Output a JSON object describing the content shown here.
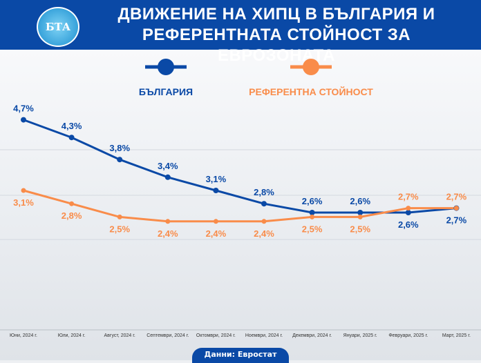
{
  "header": {
    "title_line1": "ДВИЖЕНИЕ НА ХИПЦ В БЪЛГАРИЯ И",
    "title_line2": "РЕФЕРЕНТНАТА СТОЙНОСТ ЗА ЕВРОЗОНАТА",
    "logo_text": "БТА"
  },
  "source": "Данни: Евростат",
  "chart_data": {
    "type": "line",
    "categories": [
      "Юни, 2024 г.",
      "Юли, 2024 г.",
      "Август, 2024 г.",
      "Септември, 2024 г.",
      "Октомври, 2024 г.",
      "Ноември, 2024 г.",
      "Декември, 2024 г.",
      "Януари, 2025 г.",
      "Февруари, 2025 г.",
      "Март, 2025 г."
    ],
    "series": [
      {
        "name": "БЪЛГАРИЯ",
        "color": "#0a49a6",
        "values": [
          4.7,
          4.3,
          3.8,
          3.4,
          3.1,
          2.8,
          2.6,
          2.6,
          2.6,
          2.7
        ],
        "labels": [
          "4,7%",
          "4,3%",
          "3,8%",
          "3,4%",
          "3,1%",
          "2,8%",
          "2,6%",
          "2,6%",
          "2,6%",
          "2,7%"
        ]
      },
      {
        "name": "РЕФЕРЕНТНА СТОЙНОСТ",
        "color": "#f98c4a",
        "values": [
          3.1,
          2.8,
          2.5,
          2.4,
          2.4,
          2.4,
          2.5,
          2.5,
          2.7,
          2.7
        ],
        "labels": [
          "3,1%",
          "2,8%",
          "2,5%",
          "2,4%",
          "2,4%",
          "2,4%",
          "2,5%",
          "2,5%",
          "2,7%",
          "2,7%"
        ]
      }
    ],
    "legend": "top-center",
    "grid": true
  }
}
